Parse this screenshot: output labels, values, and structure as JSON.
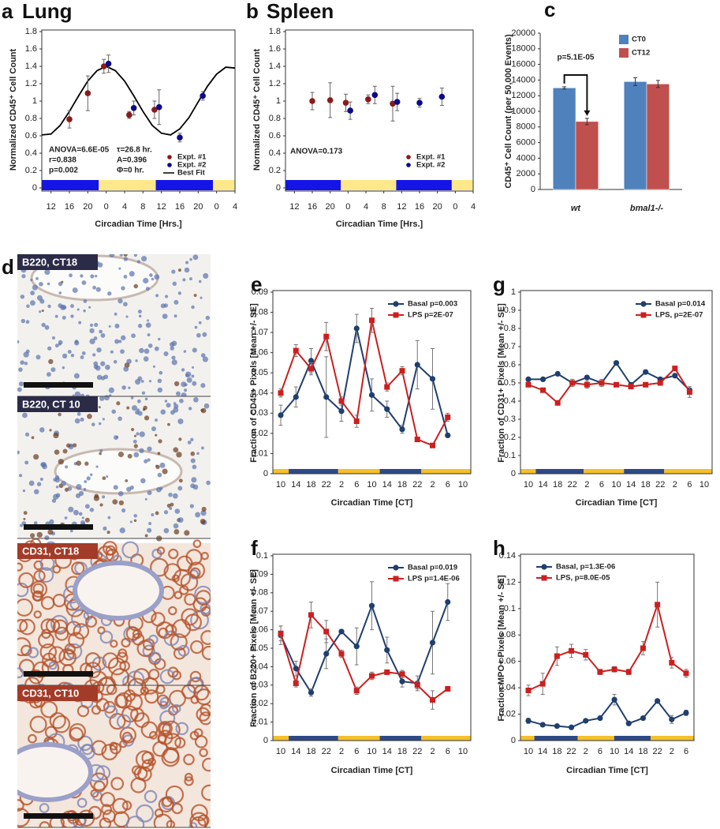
{
  "chart_data": [
    {
      "type": "scatter",
      "panel": "a",
      "title": "Lung",
      "xlabel": "Circadian Time [Hrs.]",
      "ylabel": "Normalized CD45⁺ Cell Count",
      "xlim": [
        10,
        52
      ],
      "xticks": [
        12,
        16,
        20,
        {
          "value": 24,
          "label": "0"
        },
        {
          "value": 28,
          "label": "4"
        },
        {
          "value": 32,
          "label": "8"
        },
        {
          "value": 36,
          "label": "12"
        },
        {
          "value": 40,
          "label": "16"
        },
        {
          "value": 44,
          "label": "20"
        },
        {
          "value": 48,
          "label": "0"
        },
        {
          "value": 52,
          "label": "4"
        }
      ],
      "ylim": [
        0,
        1.8
      ],
      "yticks": [
        0,
        0.2,
        0.4,
        0.6,
        0.8,
        1,
        1.2,
        1.4,
        1.6,
        1.8
      ],
      "series": [
        {
          "name": "Expt. #1",
          "color": "#8b1a1a",
          "x": [
            16,
            20,
            23.5,
            29,
            34.5
          ],
          "values": [
            0.79,
            1.09,
            1.4,
            0.84,
            0.9
          ],
          "errors": [
            0.1,
            0.2,
            0.08,
            0.04,
            0.1
          ]
        },
        {
          "name": "Expt. #2",
          "color": "#0b0b8a",
          "x": [
            24.5,
            30,
            35.5,
            40,
            45
          ],
          "values": [
            1.43,
            0.92,
            0.93,
            0.58,
            1.06
          ],
          "errors": [
            0.1,
            0.08,
            0.2,
            0.05,
            0.05
          ]
        }
      ],
      "fit": {
        "name": "Best Fit",
        "color": "#000000",
        "x": [
          10,
          12,
          14,
          16,
          18,
          20,
          22,
          24,
          26,
          28,
          30,
          32,
          34,
          36,
          38,
          40,
          42,
          44,
          46,
          48,
          50,
          52
        ],
        "values": [
          0.61,
          0.62,
          0.72,
          0.88,
          1.06,
          1.23,
          1.35,
          1.4,
          1.35,
          1.23,
          1.06,
          0.88,
          0.72,
          0.63,
          0.61,
          0.68,
          0.81,
          0.99,
          1.17,
          1.31,
          1.39,
          1.38
        ]
      },
      "annotations": [
        "ANOVA=6.6E-05",
        "r=0.838",
        "p=0.002",
        "τ=26.8 hr.",
        "A=0.396",
        "Φ=0 hr."
      ]
    },
    {
      "type": "scatter",
      "panel": "b",
      "title": "Spleen",
      "xlabel": "Circadian Time [Hrs.]",
      "ylabel": "Normalized CD45⁺ Cell Count",
      "xlim": [
        10,
        52
      ],
      "xticks": [
        12,
        16,
        20,
        {
          "value": 24,
          "label": "0"
        },
        {
          "value": 28,
          "label": "4"
        },
        {
          "value": 32,
          "label": "8"
        },
        {
          "value": 36,
          "label": "12"
        },
        {
          "value": 40,
          "label": "16"
        },
        {
          "value": 44,
          "label": "20"
        },
        {
          "value": 48,
          "label": "0"
        },
        {
          "value": 52,
          "label": "4"
        }
      ],
      "ylim": [
        0,
        1.8
      ],
      "yticks": [
        0,
        0.2,
        0.4,
        0.6,
        0.8,
        1,
        1.2,
        1.4,
        1.6,
        1.8
      ],
      "series": [
        {
          "name": "Expt. #1",
          "color": "#8b1a1a",
          "x": [
            16,
            20,
            23.5,
            28.5,
            34
          ],
          "values": [
            1.0,
            1.01,
            0.98,
            1.02,
            0.97
          ],
          "errors": [
            0.1,
            0.2,
            0.1,
            0.05,
            0.2
          ]
        },
        {
          "name": "Expt. #2",
          "color": "#0b0b8a",
          "x": [
            24.5,
            30,
            35,
            40,
            45
          ],
          "values": [
            0.89,
            1.07,
            0.99,
            0.98,
            1.05
          ],
          "errors": [
            0.1,
            0.1,
            0.1,
            0.05,
            0.1
          ]
        }
      ],
      "annotations": [
        "ANOVA=0.173"
      ]
    },
    {
      "type": "bar",
      "panel": "c",
      "ylabel": "CD45⁺ Cell Count (per 50,000 Events)",
      "categories": [
        "wt",
        "bmal1-/-"
      ],
      "ylim": [
        0,
        20000
      ],
      "yticks": [
        0,
        2000,
        4000,
        6000,
        8000,
        10000,
        12000,
        14000,
        16000,
        18000,
        20000
      ],
      "series": [
        {
          "name": "CT0",
          "color": "#4f81bd",
          "values": [
            13000,
            13800
          ],
          "errors": [
            150,
            500
          ]
        },
        {
          "name": "CT12",
          "color": "#c0504d",
          "values": [
            8700,
            13500
          ],
          "errors": [
            400,
            450
          ]
        }
      ],
      "annotations": [
        "p=5.1E-05"
      ]
    },
    {
      "type": "line",
      "panel": "e",
      "xlabel": "Circadian Time [CT]",
      "ylabel": "Fraction of CD45+ Pixels [Mean +/- SE]",
      "categories": [
        "10",
        "14",
        "18",
        "22",
        "2",
        "6",
        "10",
        "14",
        "18",
        "22",
        "2",
        "6",
        "10"
      ],
      "ylim": [
        0,
        0.09
      ],
      "yticks": [
        0,
        0.01,
        0.02,
        0.03,
        0.04,
        0.05,
        0.06,
        0.07,
        0.08,
        0.09
      ],
      "series": [
        {
          "name": "Basal p=0.003",
          "color": "#1f3f6e",
          "marker": "circle",
          "values": [
            0.029,
            0.038,
            0.056,
            0.038,
            0.031,
            0.072,
            0.039,
            0.032,
            0.022,
            0.054,
            0.047,
            0.019,
            null
          ],
          "errors": [
            0.005,
            0.005,
            0.006,
            0.02,
            0.005,
            0.007,
            0.008,
            0.004,
            0.002,
            0.012,
            0.015,
            0.001,
            null
          ]
        },
        {
          "name": "LPS p=2E-07",
          "color": "#cc1f1f",
          "marker": "square",
          "values": [
            0.04,
            0.061,
            0.052,
            0.068,
            0.036,
            0.026,
            0.076,
            0.043,
            0.051,
            0.017,
            0.014,
            0.028,
            null
          ],
          "errors": [
            0.002,
            0.003,
            0.003,
            0.007,
            0.002,
            0.003,
            0.006,
            0.002,
            0.002,
            0.001,
            0.001,
            0.002,
            null
          ]
        }
      ]
    },
    {
      "type": "line",
      "panel": "f",
      "xlabel": "Circadian Time [CT]",
      "ylabel": "Fraction of B220+ Pixels [Mean +/- SE]",
      "categories": [
        "10",
        "14",
        "18",
        "22",
        "2",
        "6",
        "10",
        "14",
        "18",
        "22",
        "2",
        "6",
        "10"
      ],
      "ylim": [
        0,
        0.1
      ],
      "yticks": [
        0,
        0.01,
        0.02,
        0.03,
        0.04,
        0.05,
        0.06,
        0.07,
        0.08,
        0.09,
        0.1
      ],
      "series": [
        {
          "name": "Basal p=0.019",
          "color": "#1f3f6e",
          "marker": "circle",
          "values": [
            0.057,
            0.039,
            0.026,
            0.047,
            0.059,
            0.051,
            0.073,
            0.049,
            0.032,
            0.031,
            0.053,
            0.075,
            null
          ],
          "errors": [
            0.005,
            0.004,
            0.002,
            0.008,
            0.001,
            0.01,
            0.013,
            0.007,
            0.003,
            0.004,
            0.017,
            0.01,
            null
          ]
        },
        {
          "name": "LPS p=1.4E-06",
          "color": "#cc1f1f",
          "marker": "square",
          "values": [
            0.058,
            0.031,
            0.068,
            0.059,
            0.047,
            0.027,
            0.035,
            0.037,
            0.036,
            0.03,
            0.022,
            0.028,
            null
          ],
          "errors": [
            0.004,
            0.002,
            0.007,
            0.006,
            0.002,
            0.002,
            0.002,
            0.001,
            0.002,
            0.002,
            0.005,
            0.001,
            null
          ]
        }
      ]
    },
    {
      "type": "line",
      "panel": "g",
      "xlabel": "Circadian Time [CT]",
      "ylabel": "Fraction of CD31+ Pixels [Mean +/- SE]",
      "categories": [
        "10",
        "14",
        "18",
        "22",
        "2",
        "6",
        "10",
        "14",
        "18",
        "22",
        "2",
        "6",
        "10"
      ],
      "ylim": [
        0,
        1
      ],
      "yticks": [
        0,
        0.1,
        0.2,
        0.3,
        0.4,
        0.5,
        0.6,
        0.7,
        0.8,
        0.9,
        1
      ],
      "series": [
        {
          "name": "Basal p=0.014",
          "color": "#1f3f6e",
          "marker": "circle",
          "values": [
            0.52,
            0.52,
            0.55,
            0.5,
            0.53,
            0.5,
            0.61,
            0.49,
            0.56,
            0.52,
            0.54,
            0.46,
            null
          ],
          "errors": [
            0.01,
            0.01,
            0.01,
            0.01,
            0.01,
            0.01,
            0.01,
            0.01,
            0.01,
            0.01,
            0.01,
            0.01,
            null
          ]
        },
        {
          "name": "LPS, p=2E-07",
          "color": "#cc1f1f",
          "marker": "square",
          "values": [
            0.49,
            0.46,
            0.39,
            0.5,
            0.49,
            0.5,
            0.49,
            0.48,
            0.49,
            0.5,
            0.58,
            0.45,
            null
          ],
          "errors": [
            0.01,
            0.01,
            0.01,
            0.02,
            0.02,
            0.02,
            0.01,
            0.01,
            0.01,
            0.01,
            0.01,
            0.03,
            null
          ]
        }
      ]
    },
    {
      "type": "line",
      "panel": "h",
      "xlabel": "Circadian Time [CT]",
      "ylabel": "Fraction MPO+ Pixels [Mean +/- SE]",
      "categories": [
        "10",
        "14",
        "18",
        "22",
        "2",
        "6",
        "10",
        "14",
        "18",
        "22",
        "2",
        "6"
      ],
      "ylim": [
        0,
        0.14
      ],
      "yticks": [
        0,
        0.02,
        0.04,
        0.06,
        0.08,
        0.1,
        0.12,
        0.14
      ],
      "series": [
        {
          "name": "Basal, p=1.3E-06",
          "color": "#1f3f6e",
          "marker": "circle",
          "values": [
            0.015,
            0.012,
            0.011,
            0.01,
            0.015,
            0.017,
            0.031,
            0.013,
            0.017,
            0.03,
            0.016,
            0.021
          ],
          "errors": [
            0.002,
            0.001,
            0.001,
            0.001,
            0.001,
            0.001,
            0.004,
            0.001,
            0.001,
            0.001,
            0.003,
            0.002
          ]
        },
        {
          "name": "LPS, p=8.0E-05",
          "color": "#cc1f1f",
          "marker": "square",
          "values": [
            0.038,
            0.043,
            0.064,
            0.068,
            0.065,
            0.052,
            0.054,
            0.052,
            0.07,
            0.103,
            0.059,
            0.051
          ],
          "errors": [
            0.004,
            0.008,
            0.007,
            0.005,
            0.004,
            0.002,
            0.002,
            0.002,
            0.005,
            0.017,
            0.004,
            0.003
          ]
        }
      ]
    }
  ],
  "panel_d": {
    "label": "d",
    "images": [
      "B220, CT18",
      "B220, CT 10",
      "CD31, CT18",
      "CD31, CT10"
    ]
  }
}
